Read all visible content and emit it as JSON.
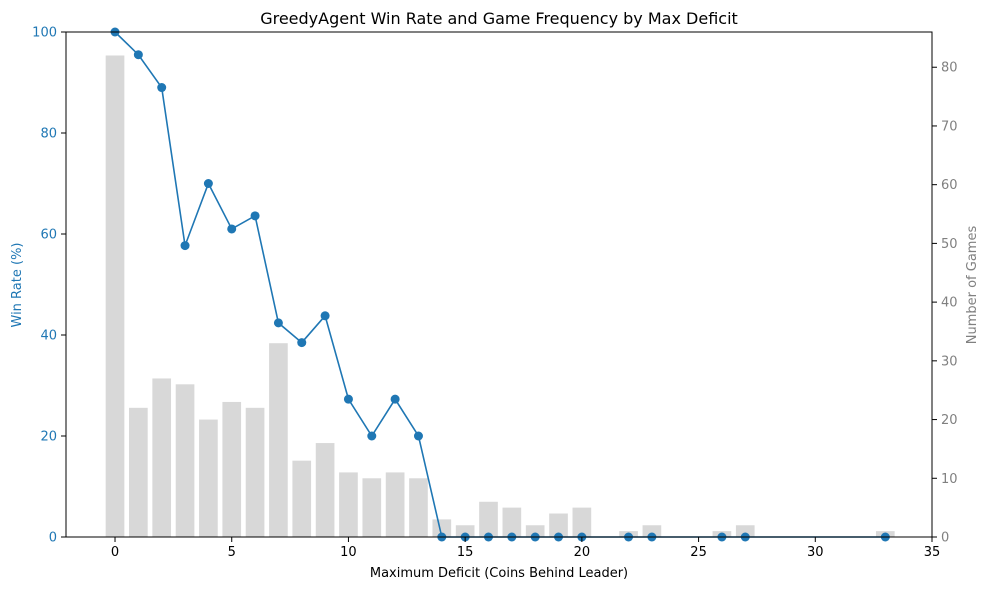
{
  "chart_data": {
    "type": "bar+line",
    "title": "GreedyAgent Win Rate and Game Frequency by Max Deficit",
    "xlabel": "Maximum Deficit (Coins Behind Leader)",
    "ylabel_left": "Win Rate (%)",
    "ylabel_right": "Number of Games",
    "xlim": [
      -2.1,
      35
    ],
    "ylim_left": [
      0,
      100
    ],
    "ylim_right": [
      0,
      86
    ],
    "x_ticks": [
      "0",
      "5",
      "10",
      "15",
      "20",
      "25",
      "30",
      "35"
    ],
    "y_left_ticks": [
      "0",
      "20",
      "40",
      "60",
      "80",
      "100"
    ],
    "y_right_ticks": [
      "0",
      "10",
      "20",
      "30",
      "40",
      "50",
      "60",
      "70",
      "80"
    ],
    "grid": false,
    "colors": {
      "line": "#1f77b4",
      "bars": "#d8d8d8",
      "left_axis": "#1f77b4",
      "right_axis": "#808080"
    },
    "bars": {
      "x": [
        0,
        1,
        2,
        3,
        4,
        5,
        6,
        7,
        8,
        9,
        10,
        11,
        12,
        13,
        14,
        15,
        16,
        17,
        18,
        19,
        20,
        22,
        23,
        26,
        27,
        33
      ],
      "values": [
        82,
        22,
        27,
        26,
        20,
        23,
        22,
        33,
        13,
        16,
        11,
        10,
        11,
        10,
        3,
        2,
        6,
        5,
        2,
        4,
        5,
        1,
        2,
        1,
        2,
        1
      ]
    },
    "win_rate": {
      "x": [
        0,
        1,
        2,
        3,
        4,
        5,
        6,
        7,
        8,
        9,
        10,
        11,
        12,
        13,
        14,
        15,
        16,
        17,
        18,
        19,
        20,
        22,
        23,
        26,
        27,
        33
      ],
      "values": [
        100,
        95.5,
        89,
        57.7,
        70,
        61,
        63.6,
        42.4,
        38.5,
        43.8,
        27.3,
        20,
        27.3,
        20,
        0,
        0,
        0,
        0,
        0,
        0,
        0,
        0,
        0,
        0,
        0,
        0
      ]
    }
  }
}
